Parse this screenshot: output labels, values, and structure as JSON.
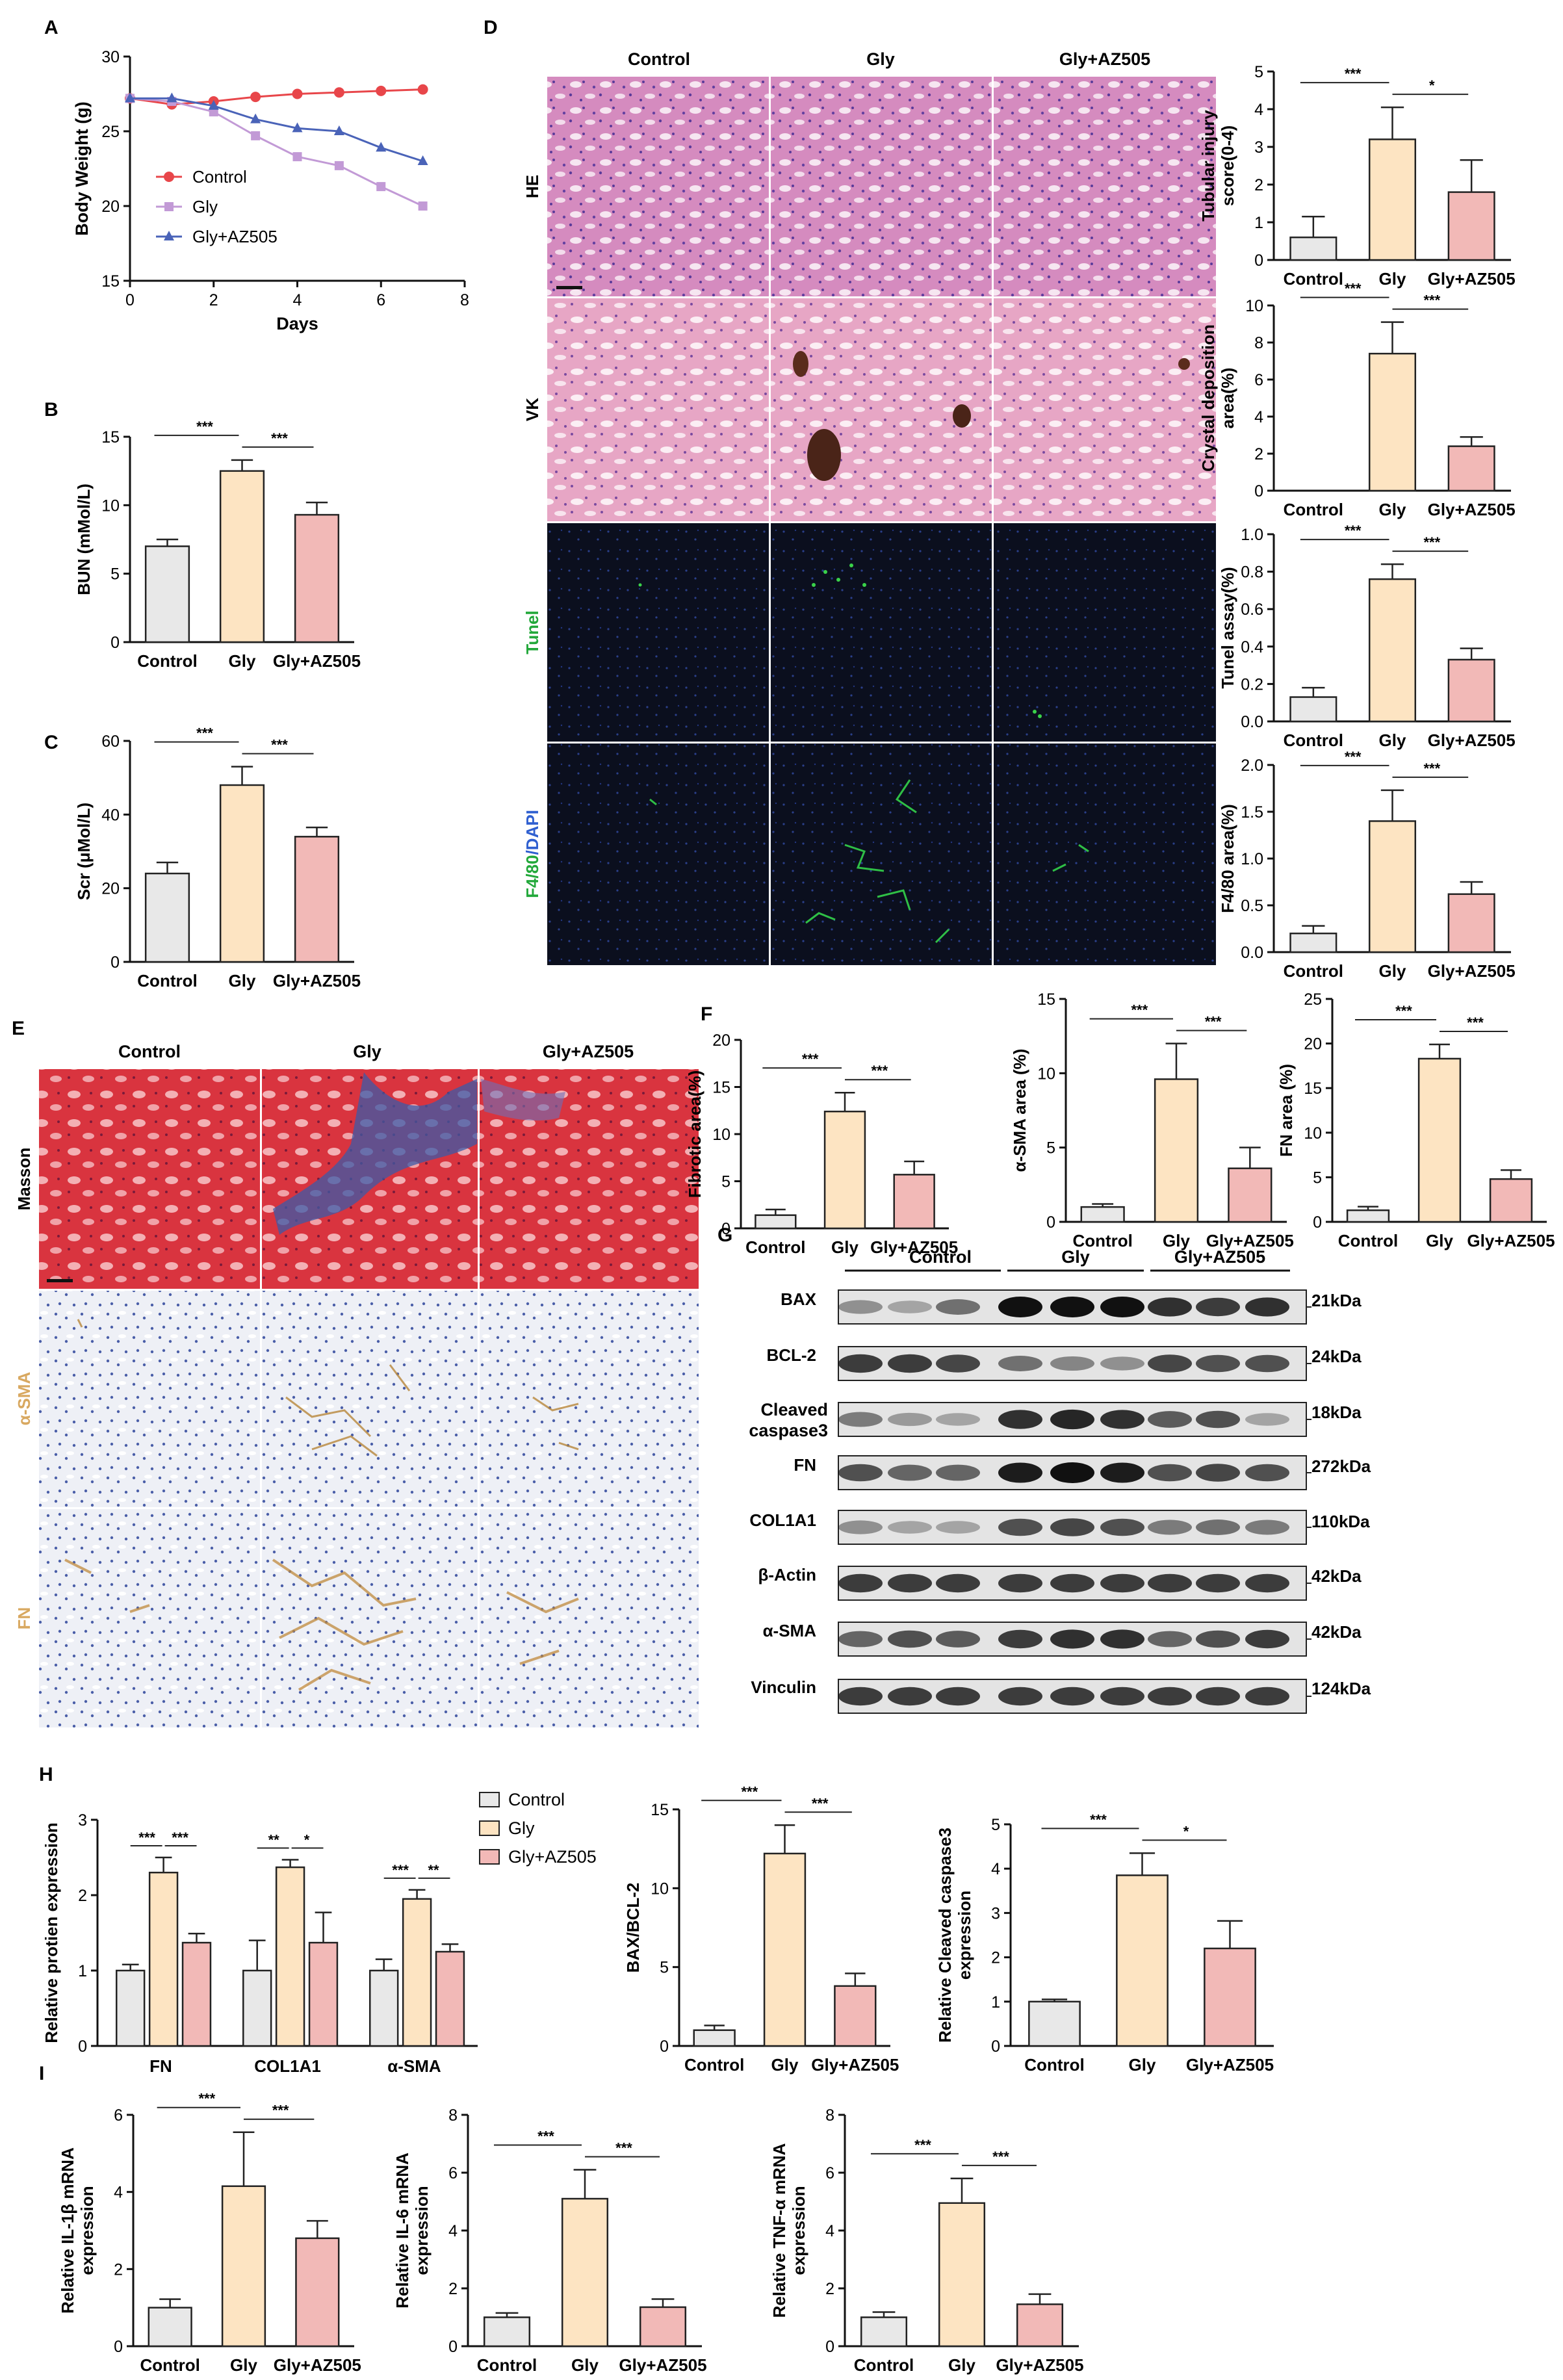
{
  "colors": {
    "control": "#e8e8e8",
    "gly": "#fde4c2",
    "gly_az": "#f2b9b7",
    "line_control": "#e8464a",
    "line_gly": "#c29ad6",
    "line_glyaz": "#4a63b8",
    "green_label": "#22a83a",
    "blue_label": "#2f5fd0",
    "tan_label": "#d8a860"
  },
  "panels": {
    "A": "A",
    "B": "B",
    "C": "C",
    "D": "D",
    "E": "E",
    "F": "F",
    "G": "G",
    "H": "H",
    "I": "I"
  },
  "histology_D": {
    "columns": [
      "Control",
      "Gly",
      "Gly+AZ505"
    ],
    "rows": [
      "HE",
      "VK",
      "Tunel",
      "F4/80/DAPI"
    ],
    "row_f4_part1": "F4/80",
    "row_f4_part2": "/DAPI"
  },
  "histology_E": {
    "columns": [
      "Control",
      "Gly",
      "Gly+AZ505"
    ],
    "rows": [
      "Masson",
      "α-SMA",
      "FN"
    ]
  },
  "western_G": {
    "groups": [
      "Control",
      "Gly",
      "Gly+AZ505"
    ],
    "bands": [
      {
        "label": "BAX",
        "size": "21kDa"
      },
      {
        "label": "BCL-2",
        "size": "24kDa"
      },
      {
        "label": "Cleaved caspase3",
        "label_line1": "Cleaved",
        "label_line2": "caspase3",
        "size": "18kDa"
      },
      {
        "label": "FN",
        "size": "272kDa"
      },
      {
        "label": "COL1A1",
        "size": "110kDa"
      },
      {
        "label": "β-Actin",
        "size": "42kDa"
      },
      {
        "label": "α-SMA",
        "size": "42kDa"
      },
      {
        "label": "Vinculin",
        "size": "124kDa"
      }
    ]
  },
  "legend_H": [
    "Control",
    "Gly",
    "Gly+AZ505"
  ],
  "chart_data": [
    {
      "id": "A",
      "type": "line",
      "xlabel": "Days",
      "ylabel": "Body Weight (g)",
      "xlim": [
        0,
        8
      ],
      "ylim": [
        15,
        30
      ],
      "xticks": [
        0,
        2,
        4,
        6,
        8
      ],
      "yticks": [
        15,
        20,
        25,
        30
      ],
      "series": [
        {
          "name": "Control",
          "x": [
            0,
            1,
            2,
            3,
            4,
            5,
            6,
            7
          ],
          "values": [
            27.2,
            26.8,
            27.0,
            27.3,
            27.5,
            27.6,
            27.7,
            27.8
          ]
        },
        {
          "name": "Gly",
          "x": [
            0,
            1,
            2,
            3,
            4,
            5,
            6,
            7
          ],
          "values": [
            27.2,
            27.0,
            26.3,
            24.7,
            23.3,
            22.7,
            21.3,
            20.0
          ]
        },
        {
          "name": "Gly+AZ505",
          "x": [
            0,
            1,
            2,
            3,
            4,
            5,
            6,
            7
          ],
          "values": [
            27.2,
            27.2,
            26.7,
            25.8,
            25.2,
            25.0,
            23.9,
            23.0
          ]
        }
      ]
    },
    {
      "id": "B",
      "type": "bar",
      "ylabel": "BUN  (mMol/L)",
      "categories": [
        "Control",
        "Gly",
        "Gly+AZ505"
      ],
      "values": [
        7.0,
        12.5,
        9.3
      ],
      "errors": [
        0.5,
        0.8,
        0.9
      ],
      "ylim": [
        0,
        15
      ],
      "yticks": [
        0,
        5,
        10,
        15
      ],
      "sig": [
        {
          "from": 0,
          "to": 1,
          "label": "***"
        },
        {
          "from": 1,
          "to": 2,
          "label": "***"
        }
      ]
    },
    {
      "id": "C",
      "type": "bar",
      "ylabel": "Scr (μMol/L)",
      "categories": [
        "Control",
        "Gly",
        "Gly+AZ505"
      ],
      "values": [
        24,
        48,
        34
      ],
      "errors": [
        3,
        5,
        2.5
      ],
      "ylim": [
        0,
        60
      ],
      "yticks": [
        0,
        20,
        40,
        60
      ],
      "sig": [
        {
          "from": 0,
          "to": 1,
          "label": "***"
        },
        {
          "from": 1,
          "to": 2,
          "label": "***"
        }
      ]
    },
    {
      "id": "D1",
      "type": "bar",
      "ylabel": "Tubular injury score(0-4)",
      "ylabel_lines": [
        "Tubular injury",
        "score(0-4)"
      ],
      "categories": [
        "Control",
        "Gly",
        "Gly+AZ505"
      ],
      "values": [
        0.6,
        3.2,
        1.8
      ],
      "errors": [
        0.55,
        0.85,
        0.85
      ],
      "ylim": [
        0,
        5
      ],
      "yticks": [
        0,
        1,
        2,
        3,
        4,
        5
      ],
      "sig": [
        {
          "from": 0,
          "to": 1,
          "label": "***"
        },
        {
          "from": 1,
          "to": 2,
          "label": "*"
        }
      ]
    },
    {
      "id": "D2",
      "type": "bar",
      "ylabel": "Crystal deposition area(%)",
      "ylabel_lines": [
        "Crystal deposition",
        "area(%)"
      ],
      "categories": [
        "Control",
        "Gly",
        "Gly+AZ505"
      ],
      "values": [
        0,
        7.4,
        2.4
      ],
      "errors": [
        0,
        1.7,
        0.5
      ],
      "ylim": [
        0,
        10
      ],
      "yticks": [
        0,
        2,
        4,
        6,
        8,
        10
      ],
      "sig": [
        {
          "from": 0,
          "to": 1,
          "label": "***"
        },
        {
          "from": 1,
          "to": 2,
          "label": "***"
        }
      ]
    },
    {
      "id": "D3",
      "type": "bar",
      "ylabel": "Tunel assay(%)",
      "categories": [
        "Control",
        "Gly",
        "Gly+AZ505"
      ],
      "values": [
        0.13,
        0.76,
        0.33
      ],
      "errors": [
        0.05,
        0.08,
        0.06
      ],
      "ylim": [
        0,
        1.0
      ],
      "yticks": [
        0.0,
        0.2,
        0.4,
        0.6,
        0.8,
        1.0
      ],
      "sig": [
        {
          "from": 0,
          "to": 1,
          "label": "***"
        },
        {
          "from": 1,
          "to": 2,
          "label": "***"
        }
      ]
    },
    {
      "id": "D4",
      "type": "bar",
      "ylabel": "F4/80 area(%)",
      "categories": [
        "Control",
        "Gly",
        "Gly+AZ505"
      ],
      "values": [
        0.2,
        1.4,
        0.62
      ],
      "errors": [
        0.08,
        0.33,
        0.13
      ],
      "ylim": [
        0,
        2.0
      ],
      "yticks": [
        0.0,
        0.5,
        1.0,
        1.5,
        2.0
      ],
      "sig": [
        {
          "from": 0,
          "to": 1,
          "label": "***"
        },
        {
          "from": 1,
          "to": 2,
          "label": "***"
        }
      ]
    },
    {
      "id": "F1",
      "type": "bar",
      "ylabel": "Fibrotic area(%)",
      "categories": [
        "Control",
        "Gly",
        "Gly+AZ505"
      ],
      "values": [
        1.4,
        12.4,
        5.7
      ],
      "errors": [
        0.6,
        2.0,
        1.4
      ],
      "ylim": [
        0,
        20
      ],
      "yticks": [
        0,
        5,
        10,
        15,
        20
      ],
      "sig": [
        {
          "from": 0,
          "to": 1,
          "label": "***"
        },
        {
          "from": 1,
          "to": 2,
          "label": "***"
        }
      ]
    },
    {
      "id": "F2",
      "type": "bar",
      "ylabel": "α-SMA area (%)",
      "categories": [
        "Control",
        "Gly",
        "Gly+AZ505"
      ],
      "values": [
        1.0,
        9.6,
        3.6
      ],
      "errors": [
        0.2,
        2.4,
        1.4
      ],
      "ylim": [
        0,
        15
      ],
      "yticks": [
        0,
        5,
        10,
        15
      ],
      "sig": [
        {
          "from": 0,
          "to": 1,
          "label": "***"
        },
        {
          "from": 1,
          "to": 2,
          "label": "***"
        }
      ]
    },
    {
      "id": "F3",
      "type": "bar",
      "ylabel": "FN area  (%)",
      "categories": [
        "Control",
        "Gly",
        "Gly+AZ505"
      ],
      "values": [
        1.3,
        18.3,
        4.8
      ],
      "errors": [
        0.4,
        1.6,
        1.0
      ],
      "ylim": [
        0,
        25
      ],
      "yticks": [
        0,
        5,
        10,
        15,
        20,
        25
      ],
      "sig": [
        {
          "from": 0,
          "to": 1,
          "label": "***"
        },
        {
          "from": 1,
          "to": 2,
          "label": "***"
        }
      ]
    },
    {
      "id": "H1",
      "type": "grouped-bar",
      "ylabel": "Relative protien expression",
      "categories": [
        "FN",
        "COL1A1",
        "α-SMA"
      ],
      "series": [
        {
          "name": "Control",
          "values": [
            1.0,
            1.0,
            1.0
          ],
          "errors": [
            0.08,
            0.4,
            0.15
          ]
        },
        {
          "name": "Gly",
          "values": [
            2.3,
            2.37,
            1.95
          ],
          "errors": [
            0.2,
            0.1,
            0.12
          ]
        },
        {
          "name": "Gly+AZ505",
          "values": [
            1.37,
            1.37,
            1.25
          ],
          "errors": [
            0.12,
            0.4,
            0.1
          ]
        }
      ],
      "ylim": [
        0,
        3
      ],
      "yticks": [
        0,
        1,
        2,
        3
      ],
      "sig": [
        [
          "***",
          "***"
        ],
        [
          "**",
          "*"
        ],
        [
          "***",
          "**"
        ]
      ]
    },
    {
      "id": "H2",
      "type": "bar",
      "ylabel": "BAX/BCL-2",
      "categories": [
        "Control",
        "Gly",
        "Gly+AZ505"
      ],
      "values": [
        1.0,
        12.2,
        3.8
      ],
      "errors": [
        0.3,
        1.8,
        0.8
      ],
      "ylim": [
        0,
        15
      ],
      "yticks": [
        0,
        5,
        10,
        15
      ],
      "sig": [
        {
          "from": 0,
          "to": 1,
          "label": "***"
        },
        {
          "from": 1,
          "to": 2,
          "label": "***"
        }
      ]
    },
    {
      "id": "H3",
      "type": "bar",
      "ylabel": "Relative Cleaved caspase3 expression",
      "ylabel_lines": [
        "Relative Cleaved caspase3",
        "expression"
      ],
      "categories": [
        "Control",
        "Gly",
        "Gly+AZ505"
      ],
      "values": [
        1.0,
        3.85,
        2.2
      ],
      "errors": [
        0.05,
        0.5,
        0.62
      ],
      "ylim": [
        0,
        5
      ],
      "yticks": [
        0,
        1,
        2,
        3,
        4,
        5
      ],
      "sig": [
        {
          "from": 0,
          "to": 1,
          "label": "***"
        },
        {
          "from": 1,
          "to": 2,
          "label": "*"
        }
      ]
    },
    {
      "id": "I1",
      "type": "bar",
      "ylabel": "Relative IL-1β mRNA expression",
      "ylabel_lines": [
        "Relative IL-1β mRNA",
        "expression"
      ],
      "categories": [
        "Control",
        "Gly",
        "Gly+AZ505"
      ],
      "values": [
        1.0,
        4.15,
        2.8
      ],
      "errors": [
        0.22,
        1.4,
        0.45
      ],
      "ylim": [
        0,
        6
      ],
      "yticks": [
        0,
        2,
        4,
        6
      ],
      "sig": [
        {
          "from": 0,
          "to": 1,
          "label": "***"
        },
        {
          "from": 1,
          "to": 2,
          "label": "***"
        }
      ]
    },
    {
      "id": "I2",
      "type": "bar",
      "ylabel": "Relative IL-6 mRNA expression",
      "ylabel_lines": [
        "Relative IL-6 mRNA",
        "expression"
      ],
      "categories": [
        "Control",
        "Gly",
        "Gly+AZ505"
      ],
      "values": [
        1.0,
        5.1,
        1.35
      ],
      "errors": [
        0.15,
        1.0,
        0.28
      ],
      "ylim": [
        0,
        8
      ],
      "yticks": [
        0,
        2,
        4,
        6,
        8
      ],
      "sig": [
        {
          "from": 0,
          "to": 1,
          "label": "***"
        },
        {
          "from": 1,
          "to": 2,
          "label": "***"
        }
      ]
    },
    {
      "id": "I3",
      "type": "bar",
      "ylabel": "Relative TNF-α mRNA expression",
      "ylabel_lines": [
        "Relative TNF-α mRNA",
        "expression"
      ],
      "categories": [
        "Control",
        "Gly",
        "Gly+AZ505"
      ],
      "values": [
        1.0,
        4.95,
        1.45
      ],
      "errors": [
        0.18,
        0.85,
        0.35
      ],
      "ylim": [
        0,
        8
      ],
      "yticks": [
        0,
        2,
        4,
        6,
        8
      ],
      "sig": [
        {
          "from": 0,
          "to": 1,
          "label": "***"
        },
        {
          "from": 1,
          "to": 2,
          "label": "***"
        }
      ]
    }
  ]
}
